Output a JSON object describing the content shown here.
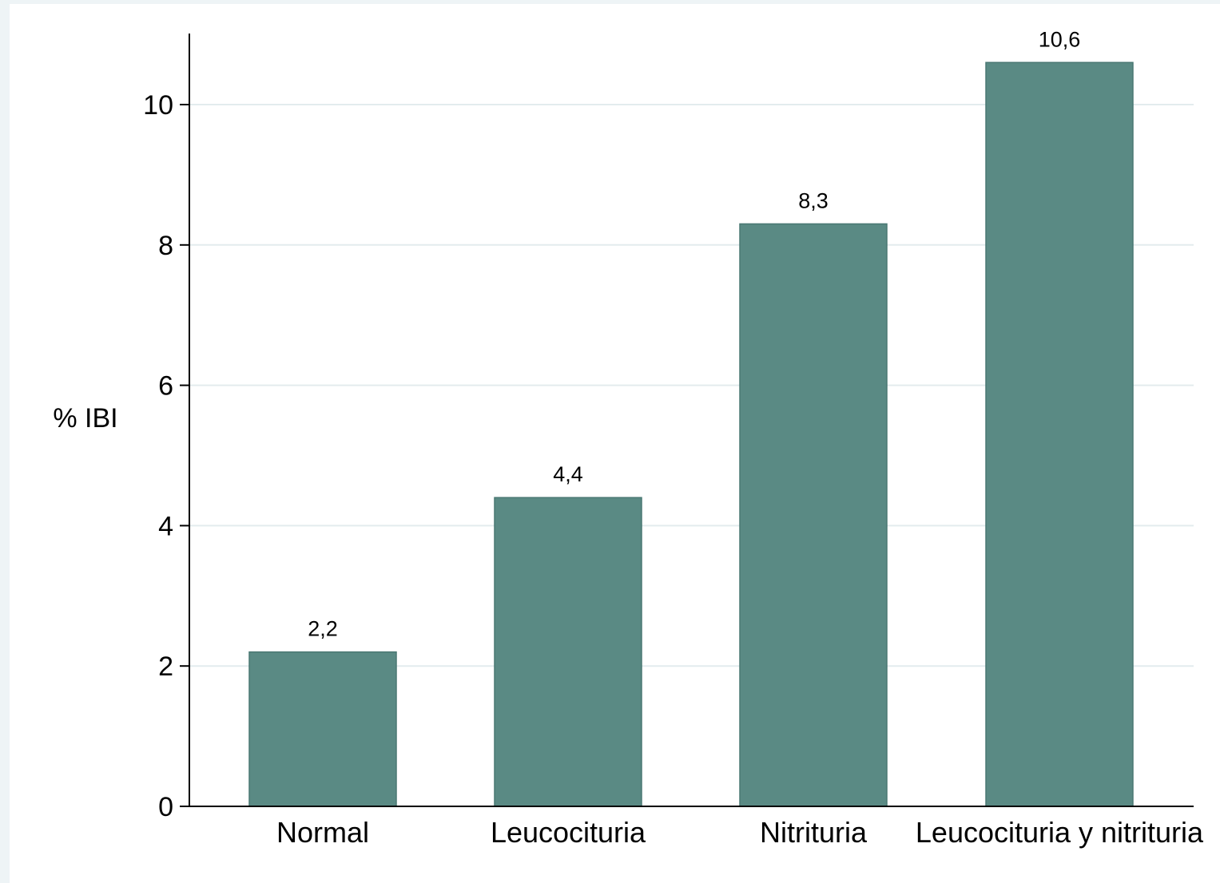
{
  "chart_data": {
    "type": "bar",
    "categories": [
      "Normal",
      "Leucocituria",
      "Nitrituria",
      "Leucocituria y nitrituria"
    ],
    "values": [
      2.2,
      4.4,
      8.3,
      10.6
    ],
    "value_labels": [
      "2,2",
      "4,4",
      "8,3",
      "10,6"
    ],
    "ylabel": "% IBI",
    "xlabel": "",
    "ylim": [
      0,
      11
    ],
    "yticks": [
      0,
      2,
      4,
      6,
      8,
      10
    ],
    "grid": true,
    "legend": "none",
    "colors": {
      "bar": "#5a8a84",
      "bar_edge": "#4a7873",
      "grid": "#e3ecee",
      "axis": "#000000"
    }
  }
}
